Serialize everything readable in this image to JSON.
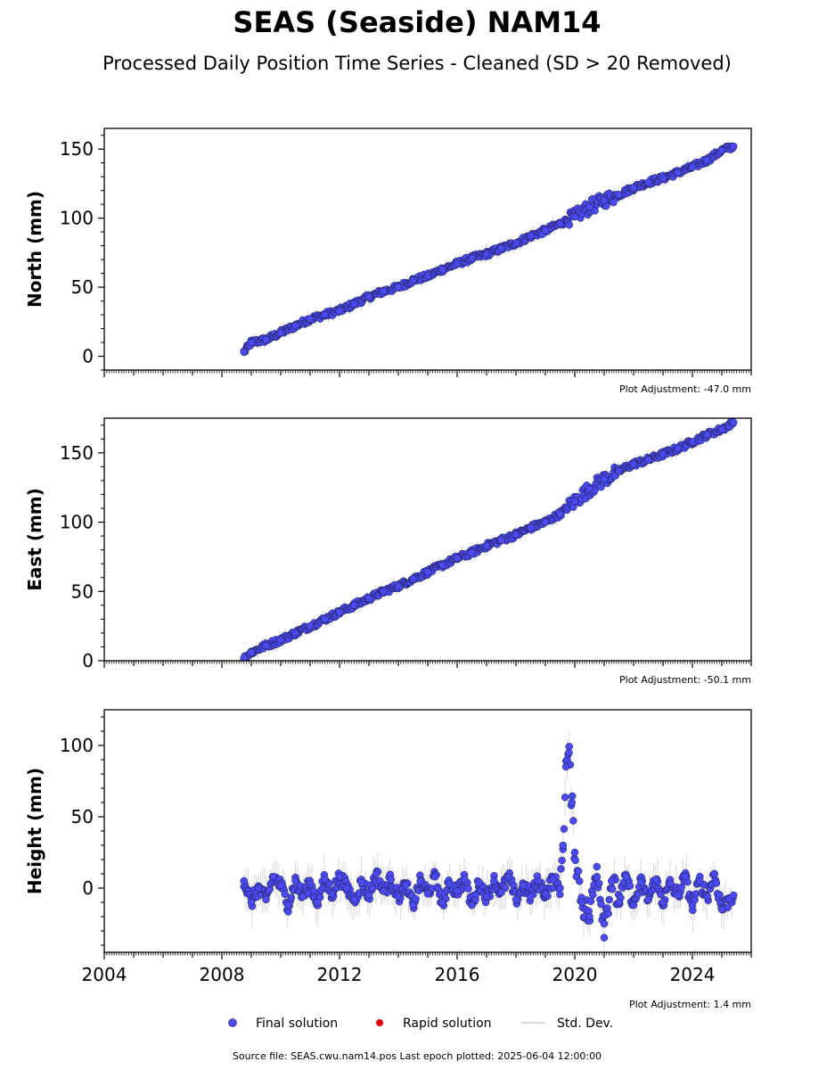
{
  "title": "SEAS (Seaside) NAM14",
  "subtitle": "Processed Daily Position Time Series - Cleaned (SD > 20 Removed)",
  "footer": "Source file: SEAS.cwu.nam14.pos  Last epoch plotted: 2025-06-04 12:00:00",
  "colors": {
    "final": "#4a4af0",
    "rapid": "#dd0000",
    "stddev": "#c8c8c8",
    "marker_edge": "#1a1a40"
  },
  "legend": {
    "final_label": "Final solution",
    "rapid_label": "Rapid solution",
    "stddev_label": "Std. Dev."
  },
  "x_ticks": [
    "2004",
    "2008",
    "2012",
    "2016",
    "2020",
    "2024"
  ],
  "chart_data": [
    {
      "type": "scatter",
      "ylabel": "North (mm)",
      "adjustment": "Plot Adjustment: -47.0 mm",
      "xlim": [
        2004.0,
        2026.0
      ],
      "ylim": [
        -10,
        165
      ],
      "yticks": [
        "0",
        "50",
        "100",
        "150"
      ],
      "x": [
        2008.75,
        2009.0,
        2009.5,
        2010.0,
        2010.5,
        2011.0,
        2011.5,
        2012.0,
        2012.5,
        2013.0,
        2013.5,
        2014.0,
        2014.5,
        2015.0,
        2015.5,
        2016.0,
        2016.5,
        2017.0,
        2017.5,
        2018.0,
        2018.5,
        2019.0,
        2019.5,
        2020.0,
        2020.5,
        2021.0,
        2021.5,
        2022.0,
        2022.5,
        2023.0,
        2023.5,
        2024.0,
        2024.5,
        2025.0,
        2025.4
      ],
      "y": [
        3,
        10,
        12,
        17,
        22,
        27,
        30,
        33,
        38,
        43,
        47,
        50,
        55,
        58,
        63,
        67,
        71,
        74,
        78,
        82,
        87,
        91,
        96,
        101,
        108,
        113,
        117,
        122,
        126,
        129,
        133,
        137,
        142,
        149,
        152
      ]
    },
    {
      "type": "scatter",
      "ylabel": "East (mm)",
      "adjustment": "Plot Adjustment: -50.1 mm",
      "xlim": [
        2004.0,
        2026.0
      ],
      "ylim": [
        0,
        175
      ],
      "yticks": [
        "0",
        "50",
        "100",
        "150"
      ],
      "x": [
        2008.75,
        2009.0,
        2009.5,
        2010.0,
        2010.5,
        2011.0,
        2011.5,
        2012.0,
        2012.5,
        2013.0,
        2013.5,
        2014.0,
        2014.5,
        2015.0,
        2015.5,
        2016.0,
        2016.5,
        2017.0,
        2017.5,
        2018.0,
        2018.5,
        2019.0,
        2019.5,
        2020.0,
        2020.5,
        2021.0,
        2021.5,
        2022.0,
        2022.5,
        2023.0,
        2023.5,
        2024.0,
        2024.5,
        2025.0,
        2025.4
      ],
      "y": [
        2,
        6,
        11,
        15,
        20,
        25,
        30,
        35,
        40,
        45,
        50,
        54,
        59,
        64,
        69,
        74,
        78,
        83,
        87,
        91,
        96,
        100,
        106,
        115,
        124,
        131,
        137,
        142,
        145,
        149,
        153,
        158,
        163,
        167,
        172
      ]
    },
    {
      "type": "scatter",
      "ylabel": "Height (mm)",
      "adjustment": "Plot Adjustment: 1.4 mm",
      "xlim": [
        2004.0,
        2026.0
      ],
      "ylim": [
        -45,
        125
      ],
      "yticks": [
        "0",
        "50",
        "100"
      ],
      "x": [
        2008.75,
        2009.0,
        2009.25,
        2009.5,
        2009.75,
        2010.0,
        2010.25,
        2010.5,
        2010.75,
        2011.0,
        2011.25,
        2011.5,
        2011.75,
        2012.0,
        2012.25,
        2012.5,
        2012.75,
        2013.0,
        2013.25,
        2013.5,
        2013.75,
        2014.0,
        2014.25,
        2014.5,
        2014.75,
        2015.0,
        2015.25,
        2015.5,
        2015.75,
        2016.0,
        2016.25,
        2016.5,
        2016.75,
        2017.0,
        2017.25,
        2017.5,
        2017.75,
        2018.0,
        2018.25,
        2018.5,
        2018.75,
        2019.0,
        2019.25,
        2019.5,
        2019.6,
        2019.7,
        2019.8,
        2019.9,
        2020.0,
        2020.25,
        2020.5,
        2020.75,
        2021.0,
        2021.25,
        2021.5,
        2021.75,
        2022.0,
        2022.25,
        2022.5,
        2022.75,
        2023.0,
        2023.25,
        2023.5,
        2023.75,
        2024.0,
        2024.25,
        2024.5,
        2024.75,
        2025.0,
        2025.25,
        2025.4
      ],
      "y": [
        5,
        -10,
        0,
        -8,
        8,
        2,
        -12,
        5,
        -6,
        3,
        -10,
        6,
        -4,
        8,
        0,
        -8,
        4,
        -5,
        10,
        -2,
        6,
        -6,
        2,
        -12,
        5,
        -4,
        8,
        -10,
        3,
        -2,
        6,
        -12,
        4,
        -6,
        5,
        -3,
        8,
        -8,
        2,
        -6,
        5,
        -4,
        6,
        0,
        30,
        85,
        95,
        60,
        25,
        -10,
        -20,
        15,
        -25,
        5,
        -10,
        8,
        -12,
        4,
        -8,
        6,
        -10,
        3,
        -5,
        8,
        -12,
        5,
        -6,
        10,
        -15,
        -8,
        -5
      ]
    }
  ]
}
